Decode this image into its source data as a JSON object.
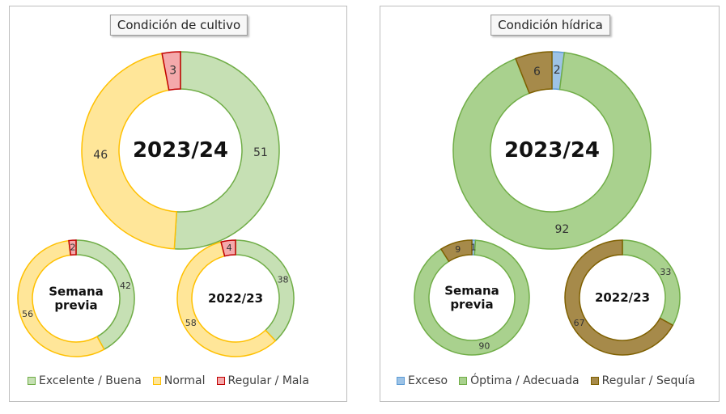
{
  "chart_data": [
    {
      "type": "donut",
      "title": "Condición de cultivo",
      "legend_position": "bottom",
      "categories": [
        "Excelente / Buena",
        "Normal",
        "Regular / Mala"
      ],
      "colors": {
        "fill": [
          "#c6e0b4",
          "#ffe699",
          "#f4a9ab"
        ],
        "stroke": [
          "#70ad47",
          "#ffc000",
          "#c00000"
        ]
      },
      "series": [
        {
          "name": "2023/24",
          "values": [
            51,
            46,
            3
          ],
          "labels": [
            "51",
            "46",
            "3"
          ]
        },
        {
          "name": "Semana previa",
          "values": [
            42,
            56,
            2
          ],
          "labels": [
            "42",
            "56",
            "2"
          ]
        },
        {
          "name": "2022/23",
          "values": [
            38,
            58,
            4
          ],
          "labels": [
            "38",
            "58",
            "4"
          ]
        }
      ]
    },
    {
      "type": "donut",
      "title": "Condición hídrica",
      "legend_position": "bottom",
      "categories": [
        "Exceso",
        "Óptima / Adecuada",
        "Regular / Sequía"
      ],
      "colors": {
        "fill": [
          "#9dc3e6",
          "#a9d18e",
          "#a68a4a"
        ],
        "stroke": [
          "#5b9bd5",
          "#70ad47",
          "#7f6000"
        ]
      },
      "series": [
        {
          "name": "2023/24",
          "values": [
            2,
            92,
            6
          ],
          "labels": [
            "2",
            "92",
            "6"
          ]
        },
        {
          "name": "Semana previa",
          "values": [
            1,
            90,
            9
          ],
          "labels": [
            "1",
            "90",
            "9"
          ]
        },
        {
          "name": "2022/23",
          "values": [
            0,
            33,
            67
          ],
          "labels": [
            "",
            "33",
            "67"
          ]
        }
      ]
    }
  ]
}
